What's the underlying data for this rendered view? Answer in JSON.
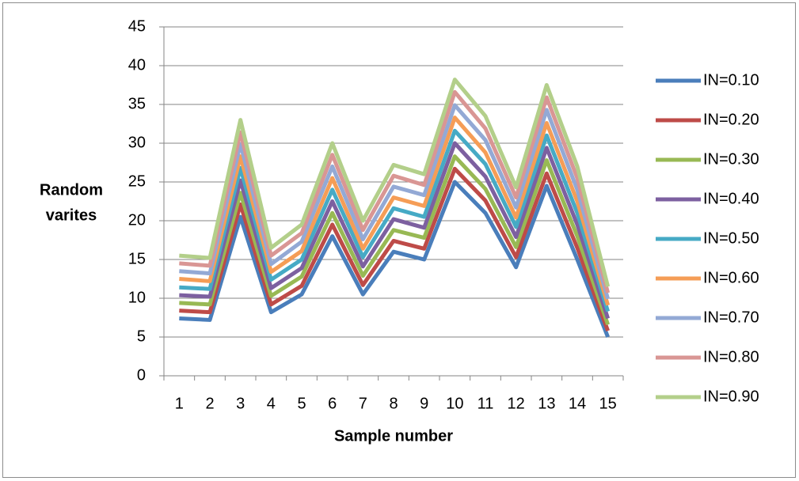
{
  "chart_data": {
    "type": "line",
    "x_label": "Sample number",
    "y_label": [
      "Random",
      "varites"
    ],
    "categories": [
      1,
      2,
      3,
      4,
      5,
      6,
      7,
      8,
      9,
      10,
      11,
      12,
      13,
      14,
      15
    ],
    "ylim": [
      0,
      45
    ],
    "yticks": [
      0,
      5,
      10,
      15,
      20,
      25,
      30,
      35,
      40,
      45
    ],
    "grid": true,
    "legend": "right",
    "series": [
      {
        "name": "IN=0.10",
        "color": "#4a7ebb",
        "values": [
          7.4,
          7.2,
          20.5,
          8.2,
          10.5,
          18,
          10.5,
          16,
          15,
          25,
          21,
          14,
          24.5,
          15,
          5
        ]
      },
      {
        "name": "IN=0.20",
        "color": "#be4b48",
        "values": [
          8.4,
          8.2,
          22.1,
          9.2,
          11.6,
          19.5,
          11.7,
          17.4,
          16.4,
          26.7,
          22.6,
          15.3,
          26.1,
          16.5,
          5.8
        ]
      },
      {
        "name": "IN=0.30",
        "color": "#98b954",
        "values": [
          9.4,
          9.2,
          23.6,
          10.3,
          12.8,
          21,
          12.9,
          18.8,
          17.8,
          28.3,
          24.1,
          16.6,
          27.8,
          18,
          6.6
        ]
      },
      {
        "name": "IN=0.40",
        "color": "#7d60a0",
        "values": [
          10.4,
          10.2,
          25.2,
          11.3,
          13.9,
          22.5,
          14.1,
          20.2,
          19.1,
          30,
          25.7,
          17.9,
          29.4,
          19.5,
          7.4
        ]
      },
      {
        "name": "IN=0.50",
        "color": "#46aac5",
        "values": [
          11.4,
          11.2,
          26.8,
          12.4,
          15,
          24,
          15.3,
          21.6,
          20.5,
          31.6,
          27.3,
          19.2,
          31,
          21,
          8.3
        ]
      },
      {
        "name": "IN=0.60",
        "color": "#f59d56",
        "values": [
          12.5,
          12.2,
          28.3,
          13.4,
          16.1,
          25.5,
          16.4,
          23,
          21.9,
          33.3,
          28.8,
          20.4,
          32.6,
          22.5,
          9.1
        ]
      },
      {
        "name": "IN=0.70",
        "color": "#93a9d5",
        "values": [
          13.5,
          13.2,
          29.9,
          14.4,
          17.3,
          27,
          17.6,
          24.4,
          23.3,
          34.9,
          30.4,
          21.7,
          34.3,
          24,
          9.9
        ]
      },
      {
        "name": "IN=0.80",
        "color": "#d99694",
        "values": [
          14.5,
          14.2,
          31.4,
          15.5,
          18.4,
          28.5,
          18.8,
          25.8,
          24.6,
          36.6,
          31.9,
          23,
          35.9,
          25.5,
          10.7
        ]
      },
      {
        "name": "IN=0.90",
        "color": "#b3cf8a",
        "values": [
          15.5,
          15.2,
          33,
          16.5,
          19.5,
          30,
          20,
          27.2,
          26,
          38.2,
          33.5,
          24.3,
          37.5,
          27,
          11.5
        ]
      }
    ]
  }
}
